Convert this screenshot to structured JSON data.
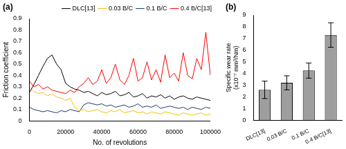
{
  "chart_data": [
    {
      "type": "line",
      "annotations": [
        "(a)"
      ],
      "x_label": "No. of revolutions",
      "y_label": "Friction coefficient",
      "x": [
        0,
        2500,
        5000,
        7500,
        10000,
        12500,
        15000,
        17500,
        20000,
        22500,
        25000,
        27500,
        30000,
        32500,
        35000,
        37500,
        40000,
        42500,
        45000,
        47500,
        50000,
        52500,
        55000,
        57500,
        60000,
        62500,
        65000,
        67500,
        70000,
        72500,
        75000,
        77500,
        80000,
        82500,
        85000,
        87500,
        90000,
        92500,
        95000,
        97500,
        100000
      ],
      "series": [
        {
          "name": "DLC[13]",
          "color": "#000000",
          "values": [
            0.25,
            0.32,
            0.4,
            0.48,
            0.55,
            0.58,
            0.5,
            0.45,
            0.33,
            0.3,
            0.28,
            0.27,
            0.25,
            0.26,
            0.24,
            0.22,
            0.25,
            0.23,
            0.24,
            0.26,
            0.22,
            0.23,
            0.25,
            0.21,
            0.22,
            0.24,
            0.2,
            0.22,
            0.21,
            0.23,
            0.2,
            0.22,
            0.19,
            0.21,
            0.22,
            0.2,
            0.19,
            0.21,
            0.2,
            0.19,
            0.18
          ]
        },
        {
          "name": "0.03 B/C",
          "color": "#f2c200",
          "values": [
            0.3,
            0.26,
            0.24,
            0.25,
            0.22,
            0.24,
            0.21,
            0.2,
            0.18,
            0.2,
            0.12,
            0.09,
            0.1,
            0.08,
            0.09,
            0.1,
            0.08,
            0.07,
            0.09,
            0.08,
            0.1,
            0.07,
            0.08,
            0.09,
            0.07,
            0.08,
            0.06,
            0.08,
            0.07,
            0.06,
            0.08,
            0.07,
            0.06,
            0.05,
            0.07,
            0.06,
            0.05,
            0.06,
            0.07,
            0.05,
            0.06
          ]
        },
        {
          "name": "0.1 B/C",
          "color": "#1f3a68",
          "values": [
            0.12,
            0.1,
            0.09,
            0.08,
            0.09,
            0.08,
            0.07,
            0.09,
            0.08,
            0.1,
            0.09,
            0.08,
            0.14,
            0.16,
            0.15,
            0.14,
            0.15,
            0.13,
            0.14,
            0.12,
            0.13,
            0.14,
            0.12,
            0.13,
            0.15,
            0.12,
            0.13,
            0.12,
            0.14,
            0.11,
            0.12,
            0.13,
            0.12,
            0.11,
            0.12,
            0.1,
            0.12,
            0.11,
            0.1,
            0.12,
            0.11
          ]
        },
        {
          "name": "0.4 B/C[13]",
          "color": "#ff0000",
          "values": [
            0.35,
            0.3,
            0.32,
            0.28,
            0.3,
            0.27,
            0.26,
            0.25,
            0.24,
            0.27,
            0.25,
            0.3,
            0.33,
            0.38,
            0.32,
            0.35,
            0.45,
            0.33,
            0.38,
            0.5,
            0.36,
            0.32,
            0.4,
            0.55,
            0.35,
            0.38,
            0.52,
            0.36,
            0.45,
            0.34,
            0.58,
            0.38,
            0.42,
            0.35,
            0.6,
            0.4,
            0.37,
            0.55,
            0.45,
            0.78,
            0.4
          ]
        }
      ],
      "xlim": [
        0,
        100000
      ],
      "xticks": [
        0,
        20000,
        40000,
        60000,
        80000,
        100000
      ],
      "ylim": [
        0,
        0.9
      ],
      "yticks": [
        0,
        0.1,
        0.2,
        0.3,
        0.4,
        0.5,
        0.6,
        0.7,
        0.8,
        0.9
      ],
      "legend": "upper right",
      "grid": false
    },
    {
      "type": "bar",
      "annotations": [
        "(b)"
      ],
      "y_label": "Specific wear rate (x10⁻⁷ mm³/Nm)",
      "categories": [
        "DLC[13]",
        "0.03 B/C",
        "0.1 B/C",
        "0.4 B/C[13]"
      ],
      "values": [
        2.6,
        3.2,
        4.25,
        7.3
      ],
      "errors": [
        0.75,
        0.6,
        0.65,
        1.05
      ],
      "color": "#9e9e9e",
      "ylim": [
        0,
        9
      ],
      "yticks": [
        0,
        1,
        2,
        3,
        4,
        5,
        6,
        7,
        8,
        9
      ],
      "grid": false
    }
  ]
}
